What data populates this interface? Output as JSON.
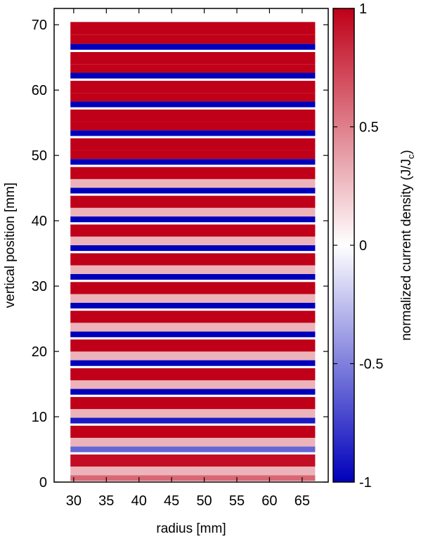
{
  "chart_data": {
    "type": "heatmap",
    "xlabel": "radius [mm]",
    "ylabel": "vertical position [mm]",
    "xlim": [
      27,
      69
    ],
    "ylim": [
      0,
      72.5
    ],
    "x_ticks": [
      30,
      35,
      40,
      45,
      50,
      55,
      60,
      65
    ],
    "y_ticks": [
      0,
      10,
      20,
      30,
      40,
      50,
      60,
      70
    ],
    "x_tick_labels": [
      "30",
      "35",
      "40",
      "45",
      "50",
      "55",
      "60",
      "65"
    ],
    "y_tick_labels": [
      "0",
      "10",
      "20",
      "30",
      "40",
      "50",
      "60",
      "70"
    ],
    "colorbar": {
      "label_main": "normalized current density (J/J",
      "label_sub": "c",
      "label_end": ")",
      "range": [
        -1,
        1
      ],
      "ticks": [
        -1,
        -0.5,
        0,
        0.5,
        1
      ],
      "tick_labels": [
        "-1",
        "-0.5",
        "0",
        "0.5",
        "1"
      ],
      "colors": {
        "low": "#0000bb",
        "mid": "#ffffff",
        "high": "#bf0018"
      }
    },
    "conductor": {
      "r_min": 29.5,
      "r_max": 67
    },
    "tapes": [
      {
        "y_bottom": 0.0,
        "y_top": 4.4,
        "top_value": 0.95,
        "core_value": 0.3,
        "bottom_value": 0.6
      },
      {
        "y_bottom": 4.4,
        "y_top": 8.8,
        "top_value": 1.0,
        "core_value": 0.3,
        "bottom_value": -0.6
      },
      {
        "y_bottom": 8.8,
        "y_top": 13.2,
        "top_value": 1.0,
        "core_value": 0.3,
        "bottom_value": -0.9
      },
      {
        "y_bottom": 13.2,
        "y_top": 17.6,
        "top_value": 1.0,
        "core_value": 0.3,
        "bottom_value": -1.0
      },
      {
        "y_bottom": 17.6,
        "y_top": 22.0,
        "top_value": 1.0,
        "core_value": 0.3,
        "bottom_value": -1.0
      },
      {
        "y_bottom": 22.0,
        "y_top": 26.4,
        "top_value": 1.0,
        "core_value": 0.3,
        "bottom_value": -1.0
      },
      {
        "y_bottom": 26.4,
        "y_top": 30.8,
        "top_value": 1.0,
        "core_value": 0.3,
        "bottom_value": -1.0
      },
      {
        "y_bottom": 30.8,
        "y_top": 35.2,
        "top_value": 1.0,
        "core_value": 0.3,
        "bottom_value": -1.0
      },
      {
        "y_bottom": 35.2,
        "y_top": 39.6,
        "top_value": 1.0,
        "core_value": 0.3,
        "bottom_value": -1.0
      },
      {
        "y_bottom": 39.6,
        "y_top": 44.0,
        "top_value": 1.0,
        "core_value": 0.3,
        "bottom_value": -1.0
      },
      {
        "y_bottom": 44.0,
        "y_top": 48.4,
        "top_value": 1.0,
        "core_value": 0.3,
        "bottom_value": -1.0
      },
      {
        "y_bottom": 48.4,
        "y_top": 52.8,
        "top_value": 1.0,
        "core_value": 1.0,
        "bottom_value": -1.0
      },
      {
        "y_bottom": 52.8,
        "y_top": 57.2,
        "top_value": 1.0,
        "core_value": 1.0,
        "bottom_value": -1.0
      },
      {
        "y_bottom": 57.2,
        "y_top": 61.6,
        "top_value": 1.0,
        "core_value": 1.0,
        "bottom_value": -1.0
      },
      {
        "y_bottom": 61.6,
        "y_top": 66.0,
        "top_value": 1.0,
        "core_value": 1.0,
        "bottom_value": -1.0
      },
      {
        "y_bottom": 66.0,
        "y_top": 70.6,
        "top_value": 1.0,
        "core_value": 1.0,
        "bottom_value": -1.0
      }
    ]
  }
}
